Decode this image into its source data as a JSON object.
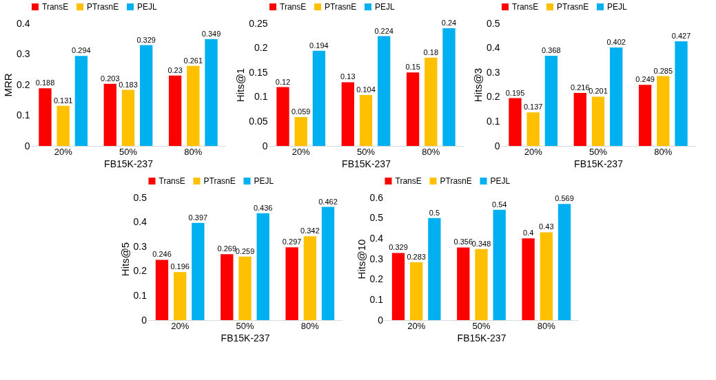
{
  "chart_data": [
    {
      "type": "bar",
      "ylabel": "MRR",
      "xlabel": "FB15K-237",
      "categories": [
        "20%",
        "50%",
        "80%"
      ],
      "ylim": [
        0,
        0.4
      ],
      "yticks": [
        0,
        0.1,
        0.2,
        0.3,
        0.4
      ],
      "legend": "top",
      "grid": false,
      "data_labels": true,
      "series": [
        {
          "name": "TransE",
          "color": "#ff0000",
          "values": [
            0.188,
            0.203,
            0.23
          ]
        },
        {
          "name": "PTrasnE",
          "color": "#ffc000",
          "values": [
            0.131,
            0.183,
            0.261
          ]
        },
        {
          "name": "PEJL",
          "color": "#00b0f0",
          "values": [
            0.294,
            0.329,
            0.349
          ]
        }
      ]
    },
    {
      "type": "bar",
      "ylabel": "Hits@1",
      "xlabel": "FB15K-237",
      "categories": [
        "20%",
        "50%",
        "80%"
      ],
      "ylim": [
        0,
        0.25
      ],
      "yticks": [
        0,
        0.05,
        0.1,
        0.15,
        0.2,
        0.25
      ],
      "legend": "top",
      "grid": false,
      "data_labels": true,
      "series": [
        {
          "name": "TransE",
          "color": "#ff0000",
          "values": [
            0.12,
            0.13,
            0.15
          ]
        },
        {
          "name": "PTrasnE",
          "color": "#ffc000",
          "values": [
            0.059,
            0.104,
            0.18
          ]
        },
        {
          "name": "PEJL",
          "color": "#00b0f0",
          "values": [
            0.194,
            0.224,
            0.24
          ]
        }
      ]
    },
    {
      "type": "bar",
      "ylabel": "Hits@3",
      "xlabel": "FB15K-237",
      "categories": [
        "20%",
        "50%",
        "80%"
      ],
      "ylim": [
        0,
        0.5
      ],
      "yticks": [
        0,
        0.1,
        0.2,
        0.3,
        0.4,
        0.5
      ],
      "legend": "top",
      "grid": false,
      "data_labels": true,
      "series": [
        {
          "name": "TransE",
          "color": "#ff0000",
          "values": [
            0.195,
            0.216,
            0.249
          ]
        },
        {
          "name": "PTrasnE",
          "color": "#ffc000",
          "values": [
            0.137,
            0.201,
            0.285
          ]
        },
        {
          "name": "PEJL",
          "color": "#00b0f0",
          "values": [
            0.368,
            0.402,
            0.427
          ]
        }
      ]
    },
    {
      "type": "bar",
      "ylabel": "Hits@5",
      "xlabel": "FB15K-237",
      "categories": [
        "20%",
        "50%",
        "80%"
      ],
      "ylim": [
        0,
        0.5
      ],
      "yticks": [
        0,
        0.1,
        0.2,
        0.3,
        0.4,
        0.5
      ],
      "legend": "top",
      "grid": false,
      "data_labels": true,
      "series": [
        {
          "name": "TransE",
          "color": "#ff0000",
          "values": [
            0.246,
            0.269,
            0.297
          ]
        },
        {
          "name": "PTrasnE",
          "color": "#ffc000",
          "values": [
            0.196,
            0.259,
            0.342
          ]
        },
        {
          "name": "PEJL",
          "color": "#00b0f0",
          "values": [
            0.397,
            0.436,
            0.462
          ]
        }
      ]
    },
    {
      "type": "bar",
      "ylabel": "Hits@10",
      "xlabel": "FB15K-237",
      "categories": [
        "20%",
        "50%",
        "80%"
      ],
      "ylim": [
        0,
        0.6
      ],
      "yticks": [
        0,
        0.1,
        0.2,
        0.3,
        0.4,
        0.5,
        0.6
      ],
      "legend": "top",
      "grid": false,
      "data_labels": true,
      "series": [
        {
          "name": "TransE",
          "color": "#ff0000",
          "values": [
            0.329,
            0.356,
            0.4
          ]
        },
        {
          "name": "PTrasnE",
          "color": "#ffc000",
          "values": [
            0.283,
            0.348,
            0.43
          ]
        },
        {
          "name": "PEJL",
          "color": "#00b0f0",
          "values": [
            0.5,
            0.54,
            0.569
          ]
        }
      ]
    }
  ]
}
